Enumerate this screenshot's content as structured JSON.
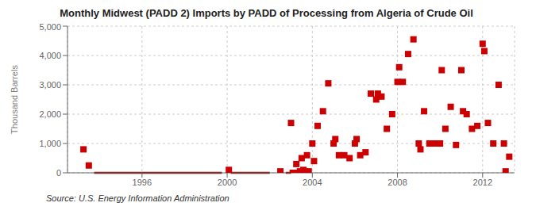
{
  "chart_data": {
    "type": "scatter",
    "title": "Monthly Midwest (PADD 2) Imports by PADD of Processing from Algeria of Crude Oil",
    "y_label": "Thousand Barrels",
    "annotations": [
      "Source: U.S. Energy Information Administration"
    ],
    "xlim": [
      1992.5,
      2013.5
    ],
    "xticks": [
      1996,
      2000,
      2004,
      2008,
      2012
    ],
    "ylim": [
      0,
      5000
    ],
    "yticks": [
      0,
      {
        "value": 1000,
        "label": "1,000"
      },
      {
        "value": 2000,
        "label": "2,000"
      },
      {
        "value": 3000,
        "label": "3,000"
      },
      {
        "value": 4000,
        "label": "4,000"
      },
      {
        "value": 5000,
        "label": "5,000"
      }
    ],
    "grid": true,
    "series": [
      {
        "type": "line",
        "color": "#8b0000",
        "x": [
          1993.75,
          1999.75
        ],
        "values": [
          0,
          0
        ]
      },
      {
        "type": "line",
        "color": "#8b0000",
        "x": [
          2000.17,
          2002.0
        ],
        "values": [
          0,
          0
        ]
      },
      {
        "type": "line",
        "color": "#8b0000",
        "x": [
          2002.75,
          2003.0
        ],
        "values": [
          0,
          0
        ]
      },
      {
        "type": "scatter",
        "color": "#cc0000",
        "marker": "square",
        "x": [
          2003.08,
          2003.17,
          2003.33,
          2003.42,
          2003.58,
          2003.67,
          2003.83
        ],
        "values": [
          0,
          0,
          0,
          50,
          100,
          50,
          50
        ]
      },
      {
        "type": "scatter",
        "color": "#cc0000",
        "marker": "square",
        "x": [
          1993.25,
          1993.5,
          2000.08,
          2002.5,
          2003.0,
          2003.25,
          2003.5,
          2003.75,
          2004.0,
          2004.08,
          2004.25,
          2004.5,
          2004.75,
          2005.0,
          2005.08,
          2005.25,
          2005.5,
          2005.75,
          2006.0,
          2006.08,
          2006.25,
          2006.5,
          2006.75,
          2007.0,
          2007.08,
          2007.25,
          2007.5,
          2007.75,
          2008.0,
          2008.08,
          2008.25,
          2008.5,
          2008.75,
          2009.0,
          2009.08,
          2009.25,
          2009.5,
          2009.75,
          2010.0,
          2010.08,
          2010.25,
          2010.5,
          2010.75,
          2011.0,
          2011.08,
          2011.25,
          2011.5,
          2011.75,
          2012.0,
          2012.08,
          2012.25,
          2012.5,
          2012.75,
          2013.0,
          2013.08,
          2013.25
        ],
        "values": [
          800,
          250,
          100,
          50,
          1700,
          300,
          500,
          600,
          1000,
          400,
          1600,
          2100,
          3050,
          1000,
          1150,
          600,
          600,
          500,
          1000,
          1150,
          600,
          700,
          2700,
          2500,
          2700,
          2600,
          1500,
          2000,
          3100,
          3600,
          3100,
          4050,
          4550,
          1000,
          800,
          2100,
          1000,
          1000,
          1000,
          3500,
          1500,
          2250,
          950,
          3500,
          2100,
          2000,
          1500,
          1600,
          4400,
          4150,
          1700,
          1000,
          3000,
          1000,
          50,
          550
        ]
      }
    ]
  }
}
